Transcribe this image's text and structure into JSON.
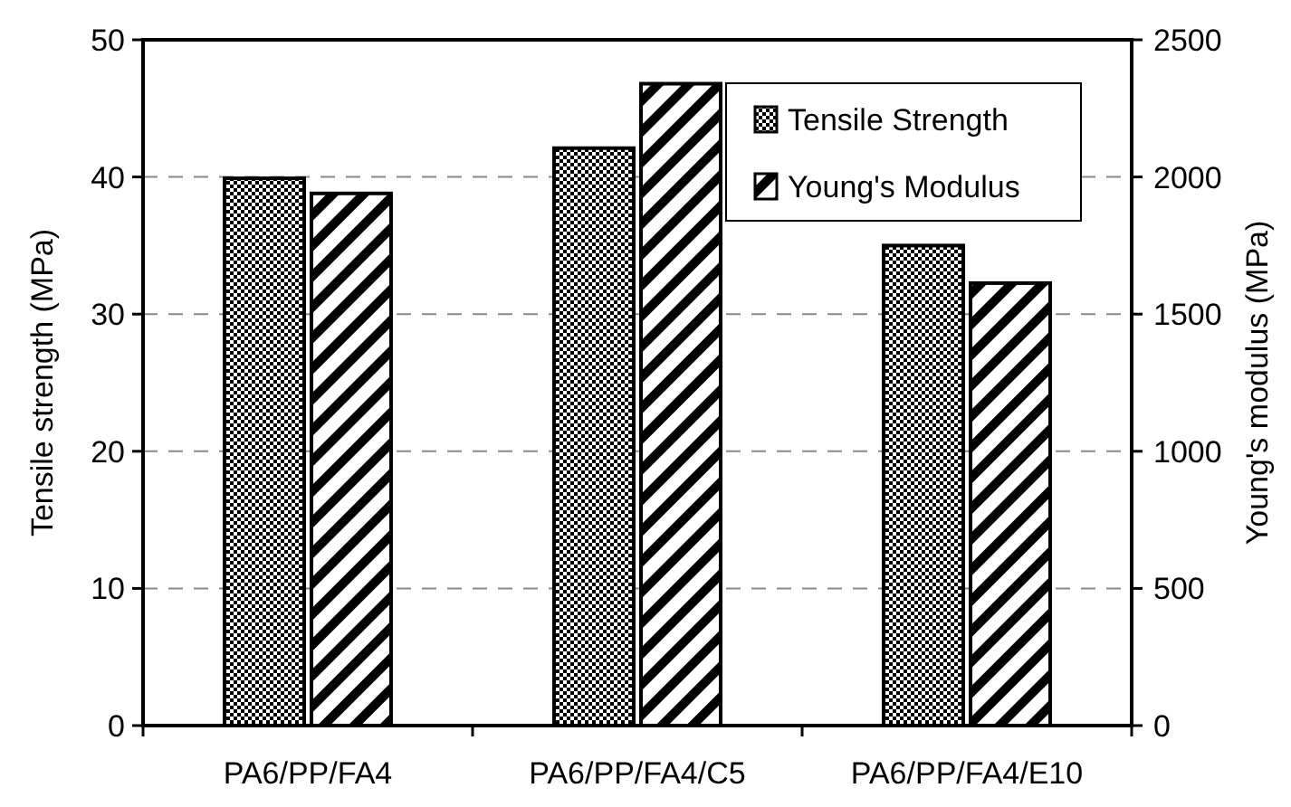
{
  "chart_data": {
    "type": "bar",
    "categories": [
      "PA6/PP/FA4",
      "PA6/PP/FA4/C5",
      "PA6/PP/FA4/E10"
    ],
    "ylabel": "Tensile strength (MPa)",
    "y2label": "Young's modulus (MPa)",
    "ylim": [
      0,
      50
    ],
    "yticks": [
      0,
      10,
      20,
      30,
      40,
      50
    ],
    "y2lim": [
      0,
      2500
    ],
    "y2ticks": [
      0,
      500,
      1000,
      1500,
      2000,
      2500
    ],
    "grid": "y",
    "legend": "top right",
    "series": [
      {
        "name": "Tensile Strength",
        "color": "#000000",
        "values": [
          39.9,
          42.1,
          35.0
        ]
      },
      {
        "name": "Young's Modulus",
        "color": "#000000",
        "axis": "y2",
        "values": [
          1940,
          2340,
          1613
        ]
      }
    ]
  }
}
